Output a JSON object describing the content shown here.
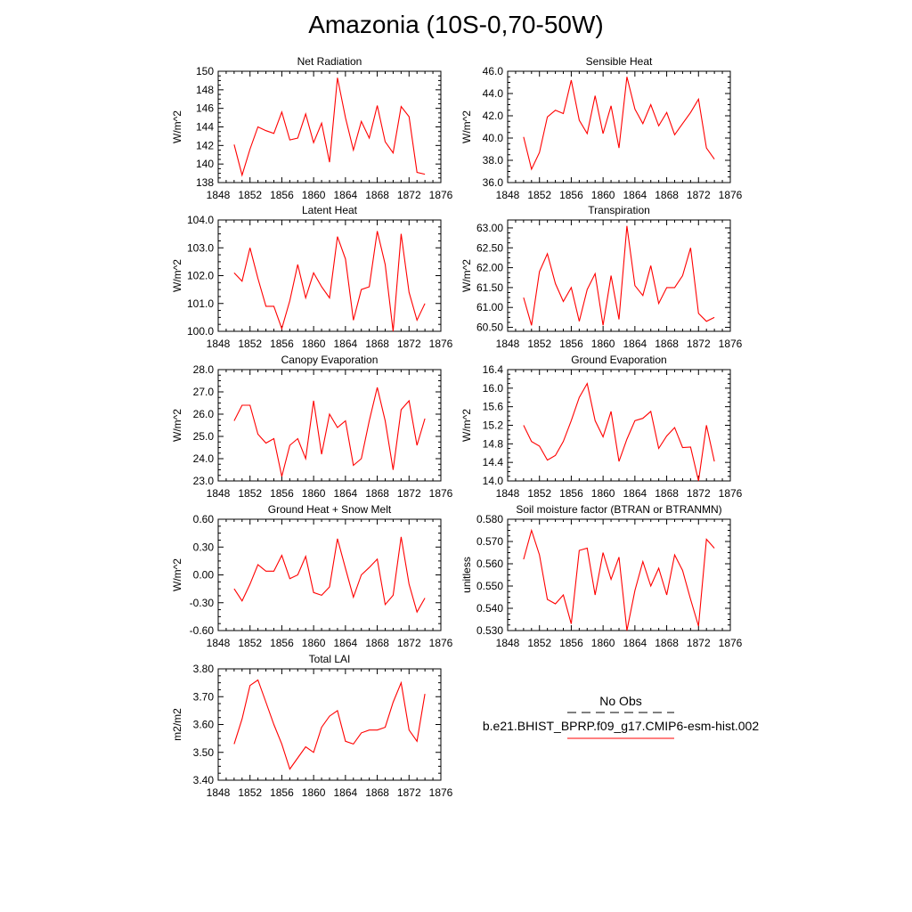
{
  "title": "Amazonia (10S-0,70-50W)",
  "legend": {
    "obs_label": "No Obs",
    "model_label": "b.e21.BHIST_BPRP.f09_g17.CMIP6-esm-hist.002",
    "model_color": "#ff0000",
    "obs_color": "#000000"
  },
  "chart_data": [
    {
      "type": "line",
      "title": "Net Radiation",
      "ylabel": "W/m^2",
      "xlim": [
        1848,
        1876
      ],
      "ylim": [
        138,
        150
      ],
      "yticks": [
        "138",
        "140",
        "142",
        "144",
        "146",
        "148",
        "150"
      ],
      "xticks": [
        "1848",
        "1852",
        "1856",
        "1860",
        "1864",
        "1868",
        "1872",
        "1876"
      ],
      "series": [
        {
          "x": [
            1850,
            1851,
            1852,
            1853,
            1854,
            1855,
            1856,
            1857,
            1858,
            1859,
            1860,
            1861,
            1862,
            1863,
            1864,
            1865,
            1866,
            1867,
            1868,
            1869,
            1870,
            1871,
            1872,
            1873,
            1874
          ],
          "values": [
            142.1,
            138.8,
            141.6,
            144.0,
            143.6,
            143.3,
            145.6,
            142.6,
            142.8,
            145.4,
            142.3,
            144.4,
            140.2,
            149.3,
            145.0,
            141.5,
            144.6,
            142.8,
            146.3,
            142.4,
            141.2,
            146.2,
            145.1,
            139.1,
            138.9
          ]
        }
      ]
    },
    {
      "type": "line",
      "title": "Sensible Heat",
      "ylabel": "W/m^2",
      "xlim": [
        1848,
        1876
      ],
      "ylim": [
        36,
        46
      ],
      "yticks": [
        "36.0",
        "38.0",
        "40.0",
        "42.0",
        "44.0",
        "46.0"
      ],
      "xticks": [
        "1848",
        "1852",
        "1856",
        "1860",
        "1864",
        "1868",
        "1872",
        "1876"
      ],
      "series": [
        {
          "x": [
            1850,
            1851,
            1852,
            1853,
            1854,
            1855,
            1856,
            1857,
            1858,
            1859,
            1860,
            1861,
            1862,
            1863,
            1864,
            1865,
            1866,
            1867,
            1868,
            1869,
            1870,
            1871,
            1872,
            1873,
            1874
          ],
          "values": [
            40.1,
            37.2,
            38.7,
            41.9,
            42.5,
            42.2,
            45.2,
            41.6,
            40.4,
            43.8,
            40.4,
            42.9,
            39.1,
            45.5,
            42.6,
            41.3,
            43.0,
            41.1,
            42.3,
            40.3,
            41.3,
            42.3,
            43.5,
            39.1,
            38.1
          ]
        }
      ]
    },
    {
      "type": "line",
      "title": "Latent Heat",
      "ylabel": "W/m^2",
      "xlim": [
        1848,
        1876
      ],
      "ylim": [
        100,
        104
      ],
      "yticks": [
        "100.0",
        "101.0",
        "102.0",
        "103.0",
        "104.0"
      ],
      "xticks": [
        "1848",
        "1852",
        "1856",
        "1860",
        "1864",
        "1868",
        "1872",
        "1876"
      ],
      "series": [
        {
          "x": [
            1850,
            1851,
            1852,
            1853,
            1854,
            1855,
            1856,
            1857,
            1858,
            1859,
            1860,
            1861,
            1862,
            1863,
            1864,
            1865,
            1866,
            1867,
            1868,
            1869,
            1870,
            1871,
            1872,
            1873,
            1874
          ],
          "values": [
            102.1,
            101.8,
            103.0,
            101.9,
            100.9,
            100.9,
            100.1,
            101.1,
            102.4,
            101.2,
            102.1,
            101.6,
            101.2,
            103.4,
            102.6,
            100.4,
            101.5,
            101.6,
            103.6,
            102.4,
            100.0,
            103.5,
            101.4,
            100.4,
            101.0
          ]
        }
      ]
    },
    {
      "type": "line",
      "title": "Transpiration",
      "ylabel": "W/m^2",
      "xlim": [
        1848,
        1876
      ],
      "ylim": [
        60.4,
        63.2
      ],
      "yticks": [
        "60.50",
        "61.00",
        "61.50",
        "62.00",
        "62.50",
        "63.00"
      ],
      "ytick_values": [
        60.5,
        61.0,
        61.5,
        62.0,
        62.5,
        63.0
      ],
      "xticks": [
        "1848",
        "1852",
        "1856",
        "1860",
        "1864",
        "1868",
        "1872",
        "1876"
      ],
      "series": [
        {
          "x": [
            1850,
            1851,
            1852,
            1853,
            1854,
            1855,
            1856,
            1857,
            1858,
            1859,
            1860,
            1861,
            1862,
            1863,
            1864,
            1865,
            1866,
            1867,
            1868,
            1869,
            1870,
            1871,
            1872,
            1873,
            1874
          ],
          "values": [
            61.25,
            60.55,
            61.9,
            62.35,
            61.6,
            61.15,
            61.5,
            60.65,
            61.45,
            61.85,
            60.55,
            61.8,
            60.7,
            63.05,
            61.55,
            61.3,
            62.05,
            61.1,
            61.5,
            61.5,
            61.8,
            62.5,
            60.85,
            60.65,
            60.75
          ]
        }
      ]
    },
    {
      "type": "line",
      "title": "Canopy Evaporation",
      "ylabel": "W/m^2",
      "xlim": [
        1848,
        1876
      ],
      "ylim": [
        23,
        28
      ],
      "yticks": [
        "23.0",
        "24.0",
        "25.0",
        "26.0",
        "27.0",
        "28.0"
      ],
      "xticks": [
        "1848",
        "1852",
        "1856",
        "1860",
        "1864",
        "1868",
        "1872",
        "1876"
      ],
      "series": [
        {
          "x": [
            1850,
            1851,
            1852,
            1853,
            1854,
            1855,
            1856,
            1857,
            1858,
            1859,
            1860,
            1861,
            1862,
            1863,
            1864,
            1865,
            1866,
            1867,
            1868,
            1869,
            1870,
            1871,
            1872,
            1873,
            1874
          ],
          "values": [
            25.7,
            26.4,
            26.4,
            25.1,
            24.7,
            24.9,
            23.2,
            24.6,
            24.9,
            24.0,
            26.6,
            24.2,
            26.0,
            25.4,
            25.7,
            23.7,
            24.0,
            25.7,
            27.2,
            25.7,
            23.5,
            26.2,
            26.6,
            24.6,
            25.8
          ]
        }
      ]
    },
    {
      "type": "line",
      "title": "Ground Evaporation",
      "ylabel": "W/m^2",
      "xlim": [
        1848,
        1876
      ],
      "ylim": [
        14.0,
        16.4
      ],
      "yticks": [
        "14.0",
        "14.4",
        "14.8",
        "15.2",
        "15.6",
        "16.0",
        "16.4"
      ],
      "xticks": [
        "1848",
        "1852",
        "1856",
        "1860",
        "1864",
        "1868",
        "1872",
        "1876"
      ],
      "series": [
        {
          "x": [
            1850,
            1851,
            1852,
            1853,
            1854,
            1855,
            1856,
            1857,
            1858,
            1859,
            1860,
            1861,
            1862,
            1863,
            1864,
            1865,
            1866,
            1867,
            1868,
            1869,
            1870,
            1871,
            1872,
            1873,
            1874
          ],
          "values": [
            15.2,
            14.85,
            14.75,
            14.45,
            14.55,
            14.85,
            15.3,
            15.8,
            16.1,
            15.3,
            14.95,
            15.5,
            14.42,
            14.9,
            15.3,
            15.35,
            15.5,
            14.7,
            14.97,
            15.15,
            14.72,
            14.73,
            14.0,
            15.2,
            14.42
          ]
        }
      ]
    },
    {
      "type": "line",
      "title": "Ground Heat + Snow Melt",
      "ylabel": "W/m^2",
      "xlim": [
        1848,
        1876
      ],
      "ylim": [
        -0.6,
        0.6
      ],
      "yticks": [
        "-0.60",
        "-0.30",
        "0.00",
        "0.30",
        "0.60"
      ],
      "xticks": [
        "1848",
        "1852",
        "1856",
        "1860",
        "1864",
        "1868",
        "1872",
        "1876"
      ],
      "series": [
        {
          "x": [
            1850,
            1851,
            1852,
            1853,
            1854,
            1855,
            1856,
            1857,
            1858,
            1859,
            1860,
            1861,
            1862,
            1863,
            1864,
            1865,
            1866,
            1867,
            1868,
            1869,
            1870,
            1871,
            1872,
            1873,
            1874
          ],
          "values": [
            -0.15,
            -0.28,
            -0.1,
            0.11,
            0.04,
            0.04,
            0.21,
            -0.04,
            0.0,
            0.2,
            -0.19,
            -0.22,
            -0.13,
            0.39,
            0.07,
            -0.24,
            0.0,
            0.08,
            0.17,
            -0.32,
            -0.22,
            0.41,
            -0.1,
            -0.4,
            -0.25
          ]
        }
      ]
    },
    {
      "type": "line",
      "title": "Soil moisture factor (BTRAN or BTRANMN)",
      "ylabel": "unitless",
      "xlim": [
        1848,
        1876
      ],
      "ylim": [
        0.53,
        0.58
      ],
      "yticks": [
        "0.530",
        "0.540",
        "0.550",
        "0.560",
        "0.570",
        "0.580"
      ],
      "xticks": [
        "1848",
        "1852",
        "1856",
        "1860",
        "1864",
        "1868",
        "1872",
        "1876"
      ],
      "series": [
        {
          "x": [
            1850,
            1851,
            1852,
            1853,
            1854,
            1855,
            1856,
            1857,
            1858,
            1859,
            1860,
            1861,
            1862,
            1863,
            1864,
            1865,
            1866,
            1867,
            1868,
            1869,
            1870,
            1871,
            1872,
            1873,
            1874
          ],
          "values": [
            0.562,
            0.575,
            0.564,
            0.544,
            0.542,
            0.546,
            0.533,
            0.566,
            0.567,
            0.546,
            0.565,
            0.553,
            0.563,
            0.53,
            0.548,
            0.561,
            0.55,
            0.558,
            0.546,
            0.564,
            0.557,
            0.544,
            0.532,
            0.571,
            0.567
          ]
        }
      ]
    },
    {
      "type": "line",
      "title": "Total LAI",
      "ylabel": "m2/m2",
      "xlim": [
        1848,
        1876
      ],
      "ylim": [
        3.4,
        3.8
      ],
      "yticks": [
        "3.40",
        "3.50",
        "3.60",
        "3.70",
        "3.80"
      ],
      "xticks": [
        "1848",
        "1852",
        "1856",
        "1860",
        "1864",
        "1868",
        "1872",
        "1876"
      ],
      "series": [
        {
          "x": [
            1850,
            1851,
            1852,
            1853,
            1854,
            1855,
            1856,
            1857,
            1858,
            1859,
            1860,
            1861,
            1862,
            1863,
            1864,
            1865,
            1866,
            1867,
            1868,
            1869,
            1870,
            1871,
            1872,
            1873,
            1874
          ],
          "values": [
            3.53,
            3.62,
            3.74,
            3.76,
            3.68,
            3.6,
            3.53,
            3.44,
            3.48,
            3.52,
            3.5,
            3.59,
            3.63,
            3.65,
            3.54,
            3.53,
            3.57,
            3.58,
            3.58,
            3.59,
            3.68,
            3.75,
            3.58,
            3.54,
            3.71
          ]
        }
      ]
    }
  ]
}
